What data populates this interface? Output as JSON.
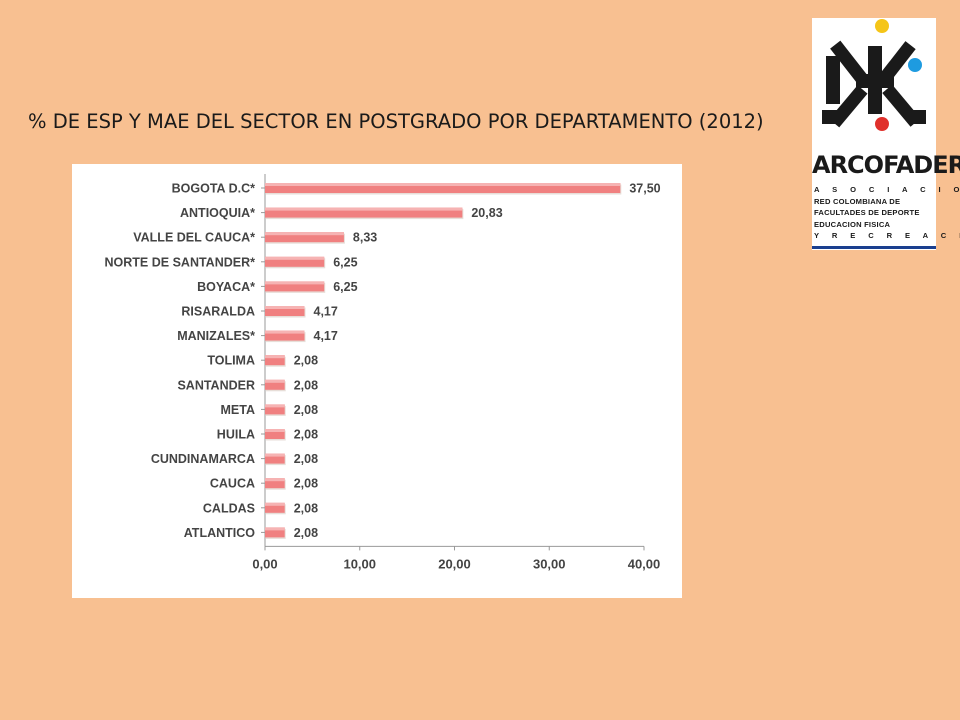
{
  "title": "% DE ESP Y MAE DEL SECTOR EN POSTGRADO POR DEPARTAMENTO (2012)",
  "logo": {
    "name": "ARCOFADER",
    "lines": [
      "A S O C I A C I O N",
      "RED COLOMBIANA DE",
      "FACULTADES DE DEPORTE",
      "EDUCACION FISICA",
      "Y R E C R E A C I O N"
    ],
    "colors": {
      "yellow": "#F5C518",
      "blue": "#1E9BE0",
      "red": "#E0302B",
      "dark": "#1a1a1a"
    }
  },
  "chart_data": {
    "type": "bar",
    "orientation": "horizontal",
    "categories": [
      "BOGOTA D.C*",
      "ANTIOQUIA*",
      "VALLE DEL CAUCA*",
      "NORTE DE SANTANDER*",
      "BOYACA*",
      "RISARALDA",
      "MANIZALES*",
      "TOLIMA",
      "SANTANDER",
      "META",
      "HUILA",
      "CUNDINAMARCA",
      "CAUCA",
      "CALDAS",
      "ATLANTICO"
    ],
    "values": [
      37.5,
      20.83,
      8.33,
      6.25,
      6.25,
      4.17,
      4.17,
      2.08,
      2.08,
      2.08,
      2.08,
      2.08,
      2.08,
      2.08,
      2.08
    ],
    "value_labels": [
      "37,50",
      "20,83",
      "8,33",
      "6,25",
      "6,25",
      "4,17",
      "4,17",
      "2,08",
      "2,08",
      "2,08",
      "2,08",
      "2,08",
      "2,08",
      "2,08",
      "2,08"
    ],
    "xlim": [
      0,
      40
    ],
    "xticks": [
      "0,00",
      "10,00",
      "20,00",
      "30,00",
      "40,00"
    ],
    "bar_color": "#F08080",
    "grid": false,
    "legend": "none"
  }
}
